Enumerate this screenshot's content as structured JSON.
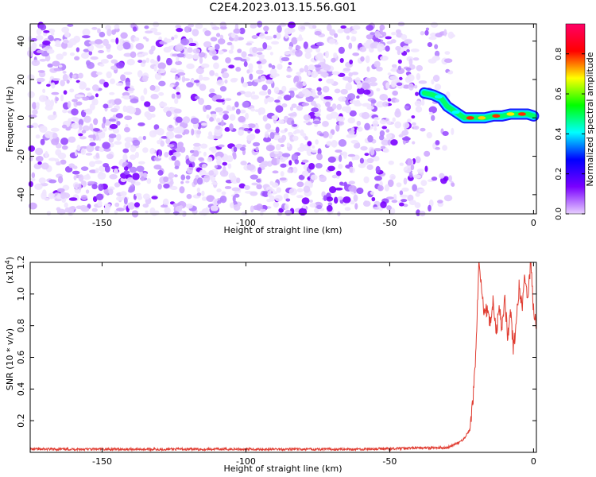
{
  "figure": {
    "title": "C2E4.2023.013.15.56.G01"
  },
  "chart_data": [
    {
      "type": "heatmap",
      "xlabel": "Height of straight line (km)",
      "ylabel": "Frequency (Hz)",
      "xlim": [
        -175,
        1
      ],
      "ylim": [
        -50,
        49
      ],
      "xticks": [
        -150,
        -100,
        -50,
        0
      ],
      "yticks": [
        -40,
        -20,
        0,
        20,
        40
      ],
      "xtick_labels": [
        "-150",
        "-100",
        "-50",
        "0"
      ],
      "ytick_labels": [
        "-40",
        "-20",
        "0",
        "20",
        "40"
      ],
      "noise_region_x": [
        -175,
        -28
      ],
      "noise_color": "#7a00ff",
      "signal_track": {
        "x": [
          -38,
          -35,
          -32,
          -30,
          -28,
          -26,
          -24,
          -22,
          -20,
          -17,
          -14,
          -11,
          -8,
          -5,
          -2,
          0
        ],
        "y": [
          13,
          12,
          10,
          6,
          4,
          2,
          0,
          0,
          0,
          0,
          1,
          1,
          2,
          2,
          2,
          1
        ]
      },
      "grid": false
    },
    {
      "type": "colorbar",
      "label": "Normalized spectral amplitude",
      "range": [
        0,
        0.95
      ],
      "ticks": [
        0.0,
        0.2,
        0.4,
        0.6,
        0.8
      ],
      "tick_labels": [
        "0.0",
        "0.2",
        "0.4",
        "0.6",
        "0.8"
      ],
      "colormap": [
        "#e8d0ff",
        "#7a00ff",
        "#0000ff",
        "#00ffff",
        "#00ff00",
        "#ffff00",
        "#ff0000",
        "#ff0066"
      ]
    },
    {
      "type": "line",
      "xlabel": "Height of straight line (km)",
      "ylabel": "SNR (10 * v/v)",
      "scale_label": "(x10",
      "scale_exponent": "4",
      "xlim": [
        -175,
        1
      ],
      "ylim": [
        0,
        1.2
      ],
      "xticks": [
        -150,
        -100,
        -50,
        0
      ],
      "yticks": [
        0.2,
        0.4,
        0.6,
        0.8,
        1.0,
        1.2
      ],
      "xtick_labels": [
        "-150",
        "-100",
        "-50",
        "0"
      ],
      "ytick_labels": [
        "0.2",
        "0.4",
        "0.6",
        "0.8",
        "1.0",
        "1.2"
      ],
      "series": [
        {
          "color": "#e03c31",
          "x": [
            -175,
            -60,
            -30,
            -26,
            -24,
            -22,
            -21,
            -20,
            -19,
            -18,
            -17,
            -16,
            -15,
            -14,
            -13,
            -12,
            -11,
            -10,
            -9,
            -8,
            -7,
            -6,
            -5,
            -4,
            -3,
            -2,
            -1,
            0,
            1
          ],
          "y": [
            0.02,
            0.02,
            0.03,
            0.06,
            0.09,
            0.15,
            0.35,
            0.65,
            1.2,
            1.0,
            0.88,
            0.92,
            0.8,
            0.98,
            0.72,
            0.95,
            0.78,
            0.98,
            0.73,
            0.9,
            0.65,
            0.82,
            1.05,
            0.92,
            1.1,
            0.96,
            1.2,
            0.9,
            0.78
          ]
        }
      ],
      "grid": false
    }
  ]
}
